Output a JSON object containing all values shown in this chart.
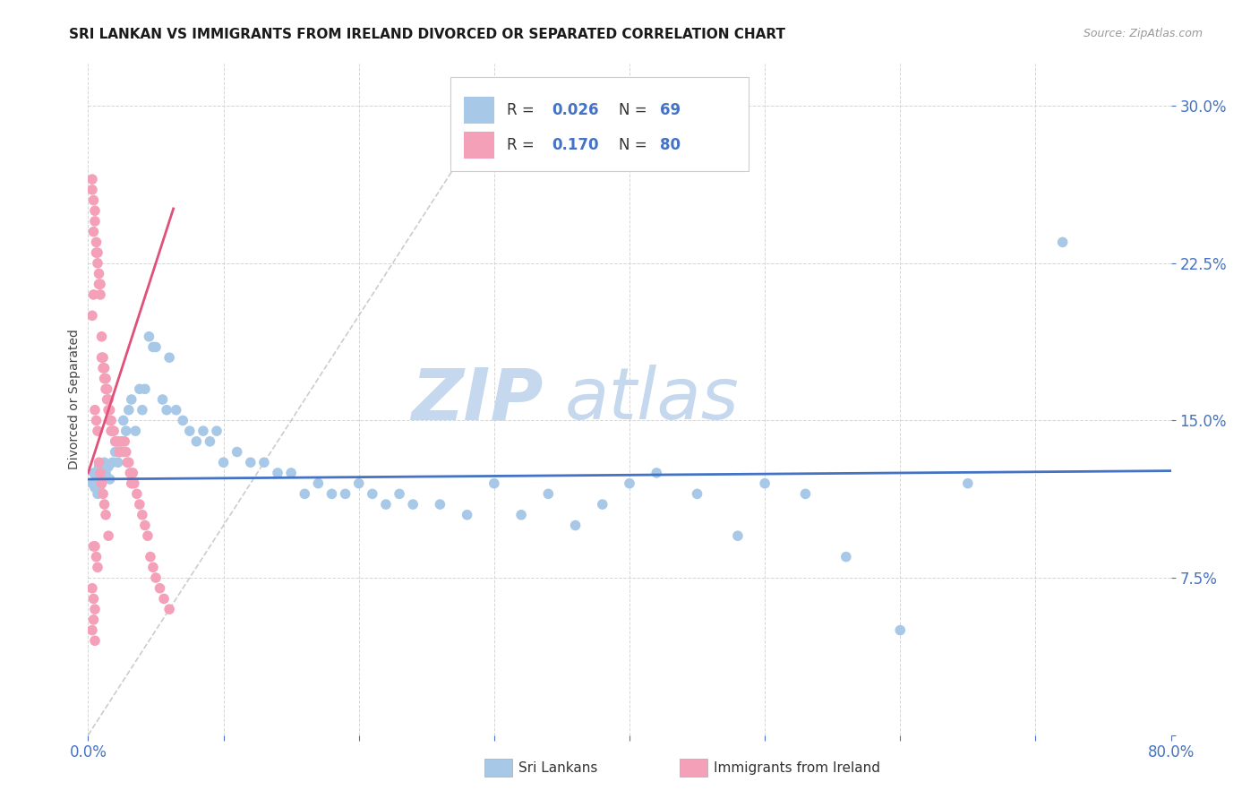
{
  "title": "SRI LANKAN VS IMMIGRANTS FROM IRELAND DIVORCED OR SEPARATED CORRELATION CHART",
  "source": "Source: ZipAtlas.com",
  "ylabel": "Divorced or Separated",
  "xlim": [
    0.0,
    0.8
  ],
  "ylim": [
    0.0,
    0.32
  ],
  "color_sri": "#a8c8e8",
  "color_ireland": "#f4a0b8",
  "color_blue": "#4472c4",
  "color_trendline_sri": "#4472c4",
  "color_trendline_ireland": "#e05078",
  "color_diagonal": "#c0c0c0",
  "background_color": "#ffffff",
  "sri_lankans_x": [
    0.003,
    0.004,
    0.005,
    0.006,
    0.007,
    0.008,
    0.009,
    0.01,
    0.012,
    0.013,
    0.015,
    0.016,
    0.018,
    0.02,
    0.022,
    0.024,
    0.026,
    0.028,
    0.03,
    0.032,
    0.035,
    0.038,
    0.04,
    0.042,
    0.045,
    0.048,
    0.05,
    0.055,
    0.058,
    0.06,
    0.065,
    0.07,
    0.075,
    0.08,
    0.085,
    0.09,
    0.095,
    0.1,
    0.11,
    0.12,
    0.13,
    0.14,
    0.15,
    0.16,
    0.17,
    0.18,
    0.19,
    0.2,
    0.21,
    0.22,
    0.23,
    0.24,
    0.26,
    0.28,
    0.3,
    0.32,
    0.34,
    0.36,
    0.38,
    0.4,
    0.42,
    0.45,
    0.48,
    0.5,
    0.53,
    0.56,
    0.6,
    0.65,
    0.72
  ],
  "sri_lankans_y": [
    0.12,
    0.125,
    0.118,
    0.122,
    0.115,
    0.128,
    0.119,
    0.121,
    0.13,
    0.125,
    0.128,
    0.122,
    0.13,
    0.135,
    0.13,
    0.14,
    0.15,
    0.145,
    0.155,
    0.16,
    0.145,
    0.165,
    0.155,
    0.165,
    0.19,
    0.185,
    0.185,
    0.16,
    0.155,
    0.18,
    0.155,
    0.15,
    0.145,
    0.14,
    0.145,
    0.14,
    0.145,
    0.13,
    0.135,
    0.13,
    0.13,
    0.125,
    0.125,
    0.115,
    0.12,
    0.115,
    0.115,
    0.12,
    0.115,
    0.11,
    0.115,
    0.11,
    0.11,
    0.105,
    0.12,
    0.105,
    0.115,
    0.1,
    0.11,
    0.12,
    0.125,
    0.115,
    0.095,
    0.12,
    0.115,
    0.085,
    0.05,
    0.12,
    0.235
  ],
  "ireland_x": [
    0.003,
    0.003,
    0.004,
    0.004,
    0.005,
    0.005,
    0.006,
    0.006,
    0.007,
    0.007,
    0.008,
    0.008,
    0.009,
    0.009,
    0.01,
    0.01,
    0.011,
    0.011,
    0.012,
    0.012,
    0.013,
    0.013,
    0.014,
    0.014,
    0.015,
    0.015,
    0.016,
    0.016,
    0.017,
    0.017,
    0.018,
    0.019,
    0.02,
    0.021,
    0.022,
    0.023,
    0.024,
    0.025,
    0.026,
    0.027,
    0.028,
    0.029,
    0.03,
    0.031,
    0.032,
    0.033,
    0.034,
    0.036,
    0.038,
    0.04,
    0.042,
    0.044,
    0.046,
    0.048,
    0.05,
    0.053,
    0.056,
    0.06,
    0.003,
    0.004,
    0.005,
    0.006,
    0.007,
    0.008,
    0.009,
    0.01,
    0.011,
    0.012,
    0.013,
    0.015,
    0.004,
    0.005,
    0.006,
    0.007,
    0.003,
    0.004,
    0.005,
    0.004,
    0.003,
    0.005
  ],
  "ireland_y": [
    0.26,
    0.265,
    0.255,
    0.24,
    0.245,
    0.25,
    0.235,
    0.23,
    0.23,
    0.225,
    0.22,
    0.215,
    0.215,
    0.21,
    0.18,
    0.19,
    0.175,
    0.18,
    0.175,
    0.17,
    0.165,
    0.17,
    0.165,
    0.16,
    0.155,
    0.16,
    0.155,
    0.15,
    0.15,
    0.145,
    0.145,
    0.145,
    0.14,
    0.14,
    0.14,
    0.135,
    0.135,
    0.14,
    0.135,
    0.14,
    0.135,
    0.13,
    0.13,
    0.125,
    0.12,
    0.125,
    0.12,
    0.115,
    0.11,
    0.105,
    0.1,
    0.095,
    0.085,
    0.08,
    0.075,
    0.07,
    0.065,
    0.06,
    0.2,
    0.21,
    0.155,
    0.15,
    0.145,
    0.13,
    0.125,
    0.12,
    0.115,
    0.11,
    0.105,
    0.095,
    0.09,
    0.09,
    0.085,
    0.08,
    0.07,
    0.065,
    0.06,
    0.055,
    0.05,
    0.045
  ]
}
